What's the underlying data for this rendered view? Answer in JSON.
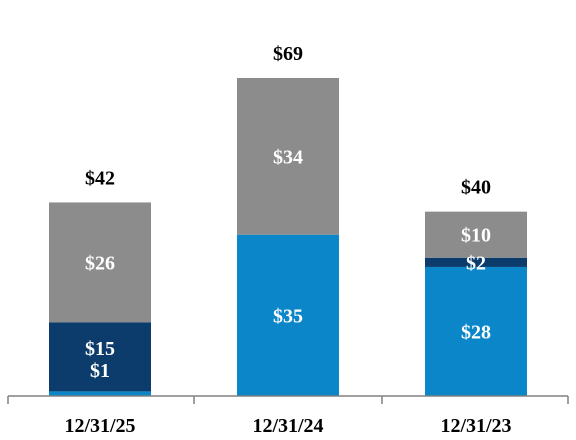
{
  "chart_data": {
    "type": "bar",
    "stacked": true,
    "categories": [
      "12/31/25",
      "12/31/24",
      "12/31/23"
    ],
    "totals": [
      "$42",
      "$69",
      "$40"
    ],
    "series": [
      {
        "color": "#0a86c9",
        "values": [
          1,
          35,
          28
        ],
        "labels": [
          "",
          "$35",
          "$28"
        ]
      },
      {
        "color": "#0b3c6b",
        "values": [
          15,
          0,
          2
        ],
        "labels": [
          "",
          "",
          "$2"
        ]
      },
      {
        "color": "#8c8c8c",
        "values": [
          26,
          34,
          10
        ],
        "labels": [
          "$26",
          "$34",
          "$10"
        ]
      }
    ],
    "combined_labels": [
      [
        "$15",
        "$1"
      ],
      [],
      []
    ],
    "ylim": [
      0,
      69
    ],
    "colors": {
      "axis": "#808080",
      "text_dark": "#000000",
      "text_light": "#ffffff"
    }
  }
}
